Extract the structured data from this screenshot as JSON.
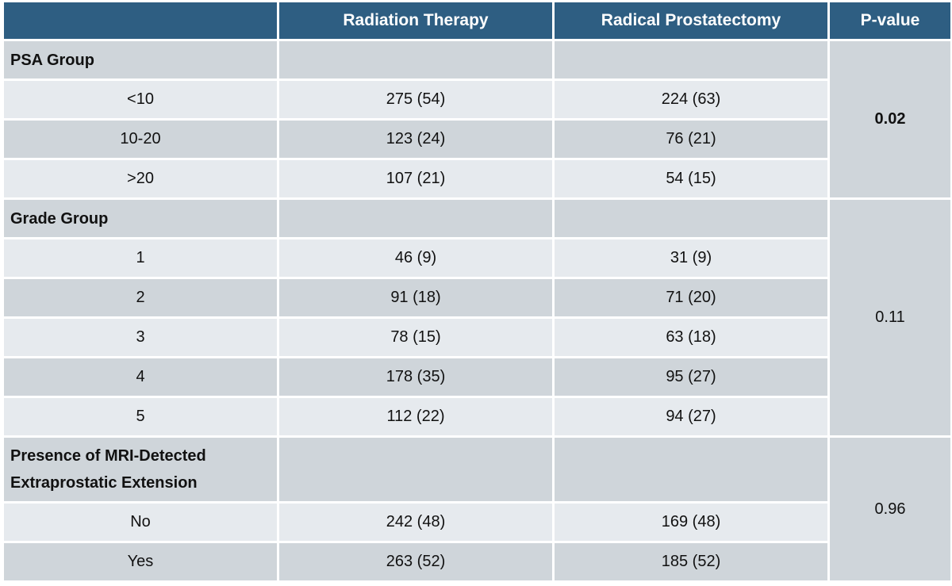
{
  "table": {
    "columns": [
      "Radiation Therapy",
      "Radical Prostatectomy",
      "P-value"
    ],
    "groups": [
      {
        "label": "PSA Group",
        "p_value": "0.02",
        "significant": true,
        "rows": [
          {
            "label": "<10",
            "values": [
              "275 (54)",
              "224 (63)"
            ]
          },
          {
            "label": "10-20",
            "values": [
              "123 (24)",
              "76 (21)"
            ]
          },
          {
            "label": ">20",
            "values": [
              "107 (21)",
              "54 (15)"
            ]
          }
        ]
      },
      {
        "label": "Grade Group",
        "p_value": "0.11",
        "significant": false,
        "rows": [
          {
            "label": "1",
            "values": [
              "46 (9)",
              "31 (9)"
            ]
          },
          {
            "label": "2",
            "values": [
              "91 (18)",
              "71 (20)"
            ]
          },
          {
            "label": "3",
            "values": [
              "78 (15)",
              "63 (18)"
            ]
          },
          {
            "label": "4",
            "values": [
              "178 (35)",
              "95 (27)"
            ]
          },
          {
            "label": "5",
            "values": [
              "112 (22)",
              "94 (27)"
            ]
          }
        ]
      },
      {
        "label": "Presence of MRI-Detected Extraprostatic Extension",
        "p_value": "0.96",
        "significant": false,
        "rows": [
          {
            "label": "No",
            "values": [
              "242 (48)",
              "169 (48)"
            ]
          },
          {
            "label": "Yes",
            "values": [
              "263 (52)",
              "185 (52)"
            ]
          }
        ]
      }
    ]
  }
}
